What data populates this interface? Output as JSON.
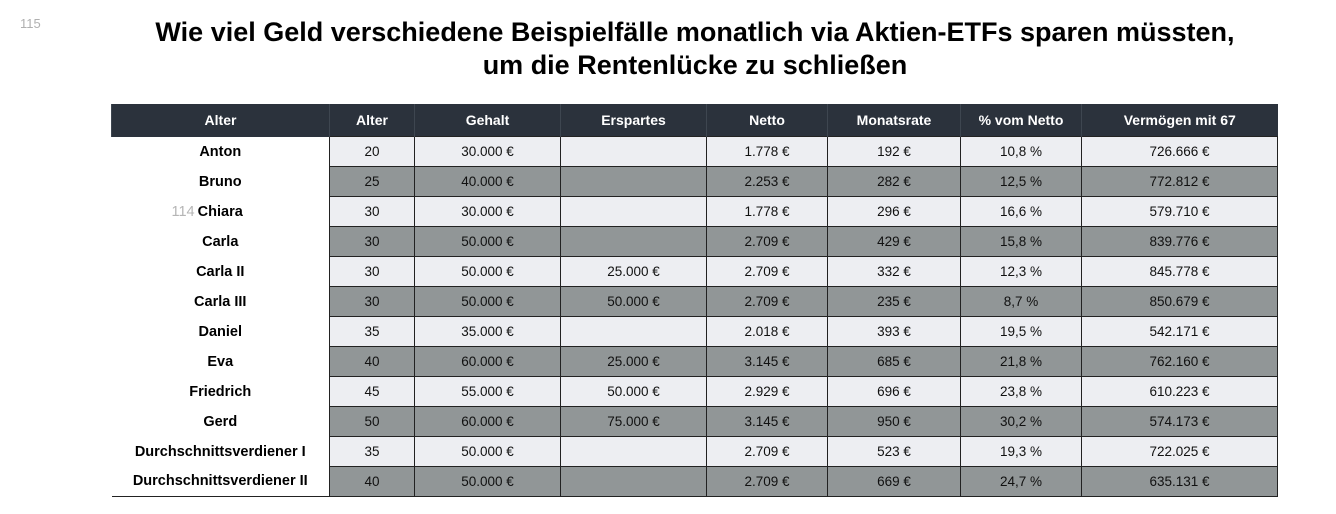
{
  "page_number": "115",
  "overlay_number": "114",
  "title_line1": "Wie viel Geld verschiedene Beispielfälle monatlich via Aktien-ETFs sparen müssten,",
  "title_line2": "um die Rentenlücke zu schließen",
  "colors": {
    "header_bg": "#2b323c",
    "row_light": "#edeef2",
    "row_dark": "#919697"
  },
  "table": {
    "headers": [
      "Alter",
      "Alter",
      "Gehalt",
      "Erspartes",
      "Netto",
      "Monatsrate",
      "% vom Netto",
      "Vermögen mit 67"
    ],
    "rows": [
      [
        "Anton",
        "20",
        "30.000 €",
        "",
        "1.778 €",
        "192 €",
        "10,8 %",
        "726.666 €"
      ],
      [
        "Bruno",
        "25",
        "40.000 €",
        "",
        "2.253 €",
        "282 €",
        "12,5 %",
        "772.812 €"
      ],
      [
        "Chiara",
        "30",
        "30.000 €",
        "",
        "1.778 €",
        "296 €",
        "16,6 %",
        "579.710 €"
      ],
      [
        "Carla",
        "30",
        "50.000 €",
        "",
        "2.709 €",
        "429 €",
        "15,8 %",
        "839.776 €"
      ],
      [
        "Carla II",
        "30",
        "50.000 €",
        "25.000 €",
        "2.709 €",
        "332 €",
        "12,3 %",
        "845.778 €"
      ],
      [
        "Carla III",
        "30",
        "50.000 €",
        "50.000 €",
        "2.709 €",
        "235 €",
        "8,7 %",
        "850.679 €"
      ],
      [
        "Daniel",
        "35",
        "35.000 €",
        "",
        "2.018 €",
        "393 €",
        "19,5 %",
        "542.171 €"
      ],
      [
        "Eva",
        "40",
        "60.000 €",
        "25.000 €",
        "3.145 €",
        "685 €",
        "21,8 %",
        "762.160 €"
      ],
      [
        "Friedrich",
        "45",
        "55.000 €",
        "50.000 €",
        "2.929 €",
        "696 €",
        "23,8 %",
        "610.223 €"
      ],
      [
        "Gerd",
        "50",
        "60.000 €",
        "75.000 €",
        "3.145 €",
        "950 €",
        "30,2 %",
        "574.173 €"
      ],
      [
        "Durchschnittsverdiener I",
        "35",
        "50.000 €",
        "",
        "2.709 €",
        "523 €",
        "19,3 %",
        "722.025 €"
      ],
      [
        "Durchschnittsverdiener II",
        "40",
        "50.000 €",
        "",
        "2.709 €",
        "669 €",
        "24,7 %",
        "635.131 €"
      ]
    ]
  }
}
